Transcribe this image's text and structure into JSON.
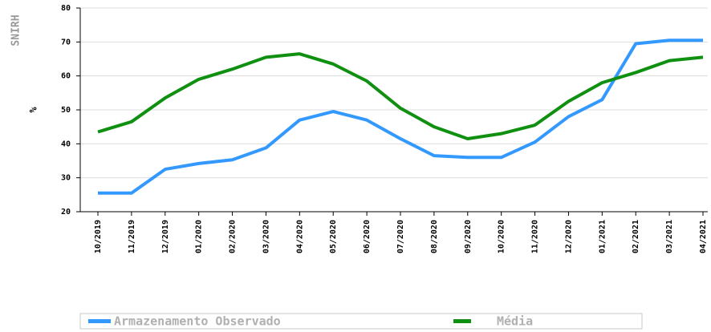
{
  "chart_data": {
    "type": "line",
    "watermark": "SNIRH",
    "y_label": "%",
    "categories": [
      "10/2019",
      "11/2019",
      "12/2019",
      "01/2020",
      "02/2020",
      "03/2020",
      "04/2020",
      "05/2020",
      "06/2020",
      "07/2020",
      "08/2020",
      "09/2020",
      "10/2020",
      "11/2020",
      "12/2020",
      "01/2021",
      "02/2021",
      "03/2021",
      "04/2021"
    ],
    "series": [
      {
        "name": "Armazenamento Observado",
        "color": "#3399ff",
        "values": [
          25.5,
          25.5,
          32.5,
          34.2,
          35.3,
          38.8,
          47,
          49.5,
          47,
          41.5,
          36.5,
          36,
          36,
          40.5,
          48,
          53,
          69.5,
          70.5,
          70.5
        ]
      },
      {
        "name": "Média",
        "color": "#109010",
        "values": [
          43.5,
          46.5,
          53.5,
          59,
          62,
          65.5,
          66.5,
          63.5,
          58.5,
          50.5,
          45,
          41.5,
          43,
          45.5,
          52.5,
          58,
          61,
          64.5,
          65.5
        ]
      }
    ],
    "ylim": [
      20,
      80
    ],
    "yticks": [
      20,
      30,
      40,
      50,
      60,
      70,
      80
    ],
    "grid": true,
    "legend": "bottom"
  }
}
